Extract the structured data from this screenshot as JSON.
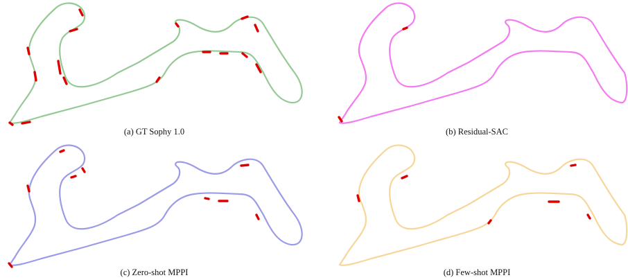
{
  "colors": {
    "track_a": "#97c996",
    "track_b": "#f27cf0",
    "track_c": "#9b9be8",
    "track_d": "#f7d69a",
    "violation": "#dd0000"
  },
  "panels": [
    {
      "id": "a",
      "caption": "(a) GT Sophy 1.0"
    },
    {
      "id": "b",
      "caption": "(b) Residual-SAC"
    },
    {
      "id": "c",
      "caption": "(c) Zero-shot MPPI"
    },
    {
      "id": "d",
      "caption": "(d) Few-shot MPPI"
    }
  ]
}
